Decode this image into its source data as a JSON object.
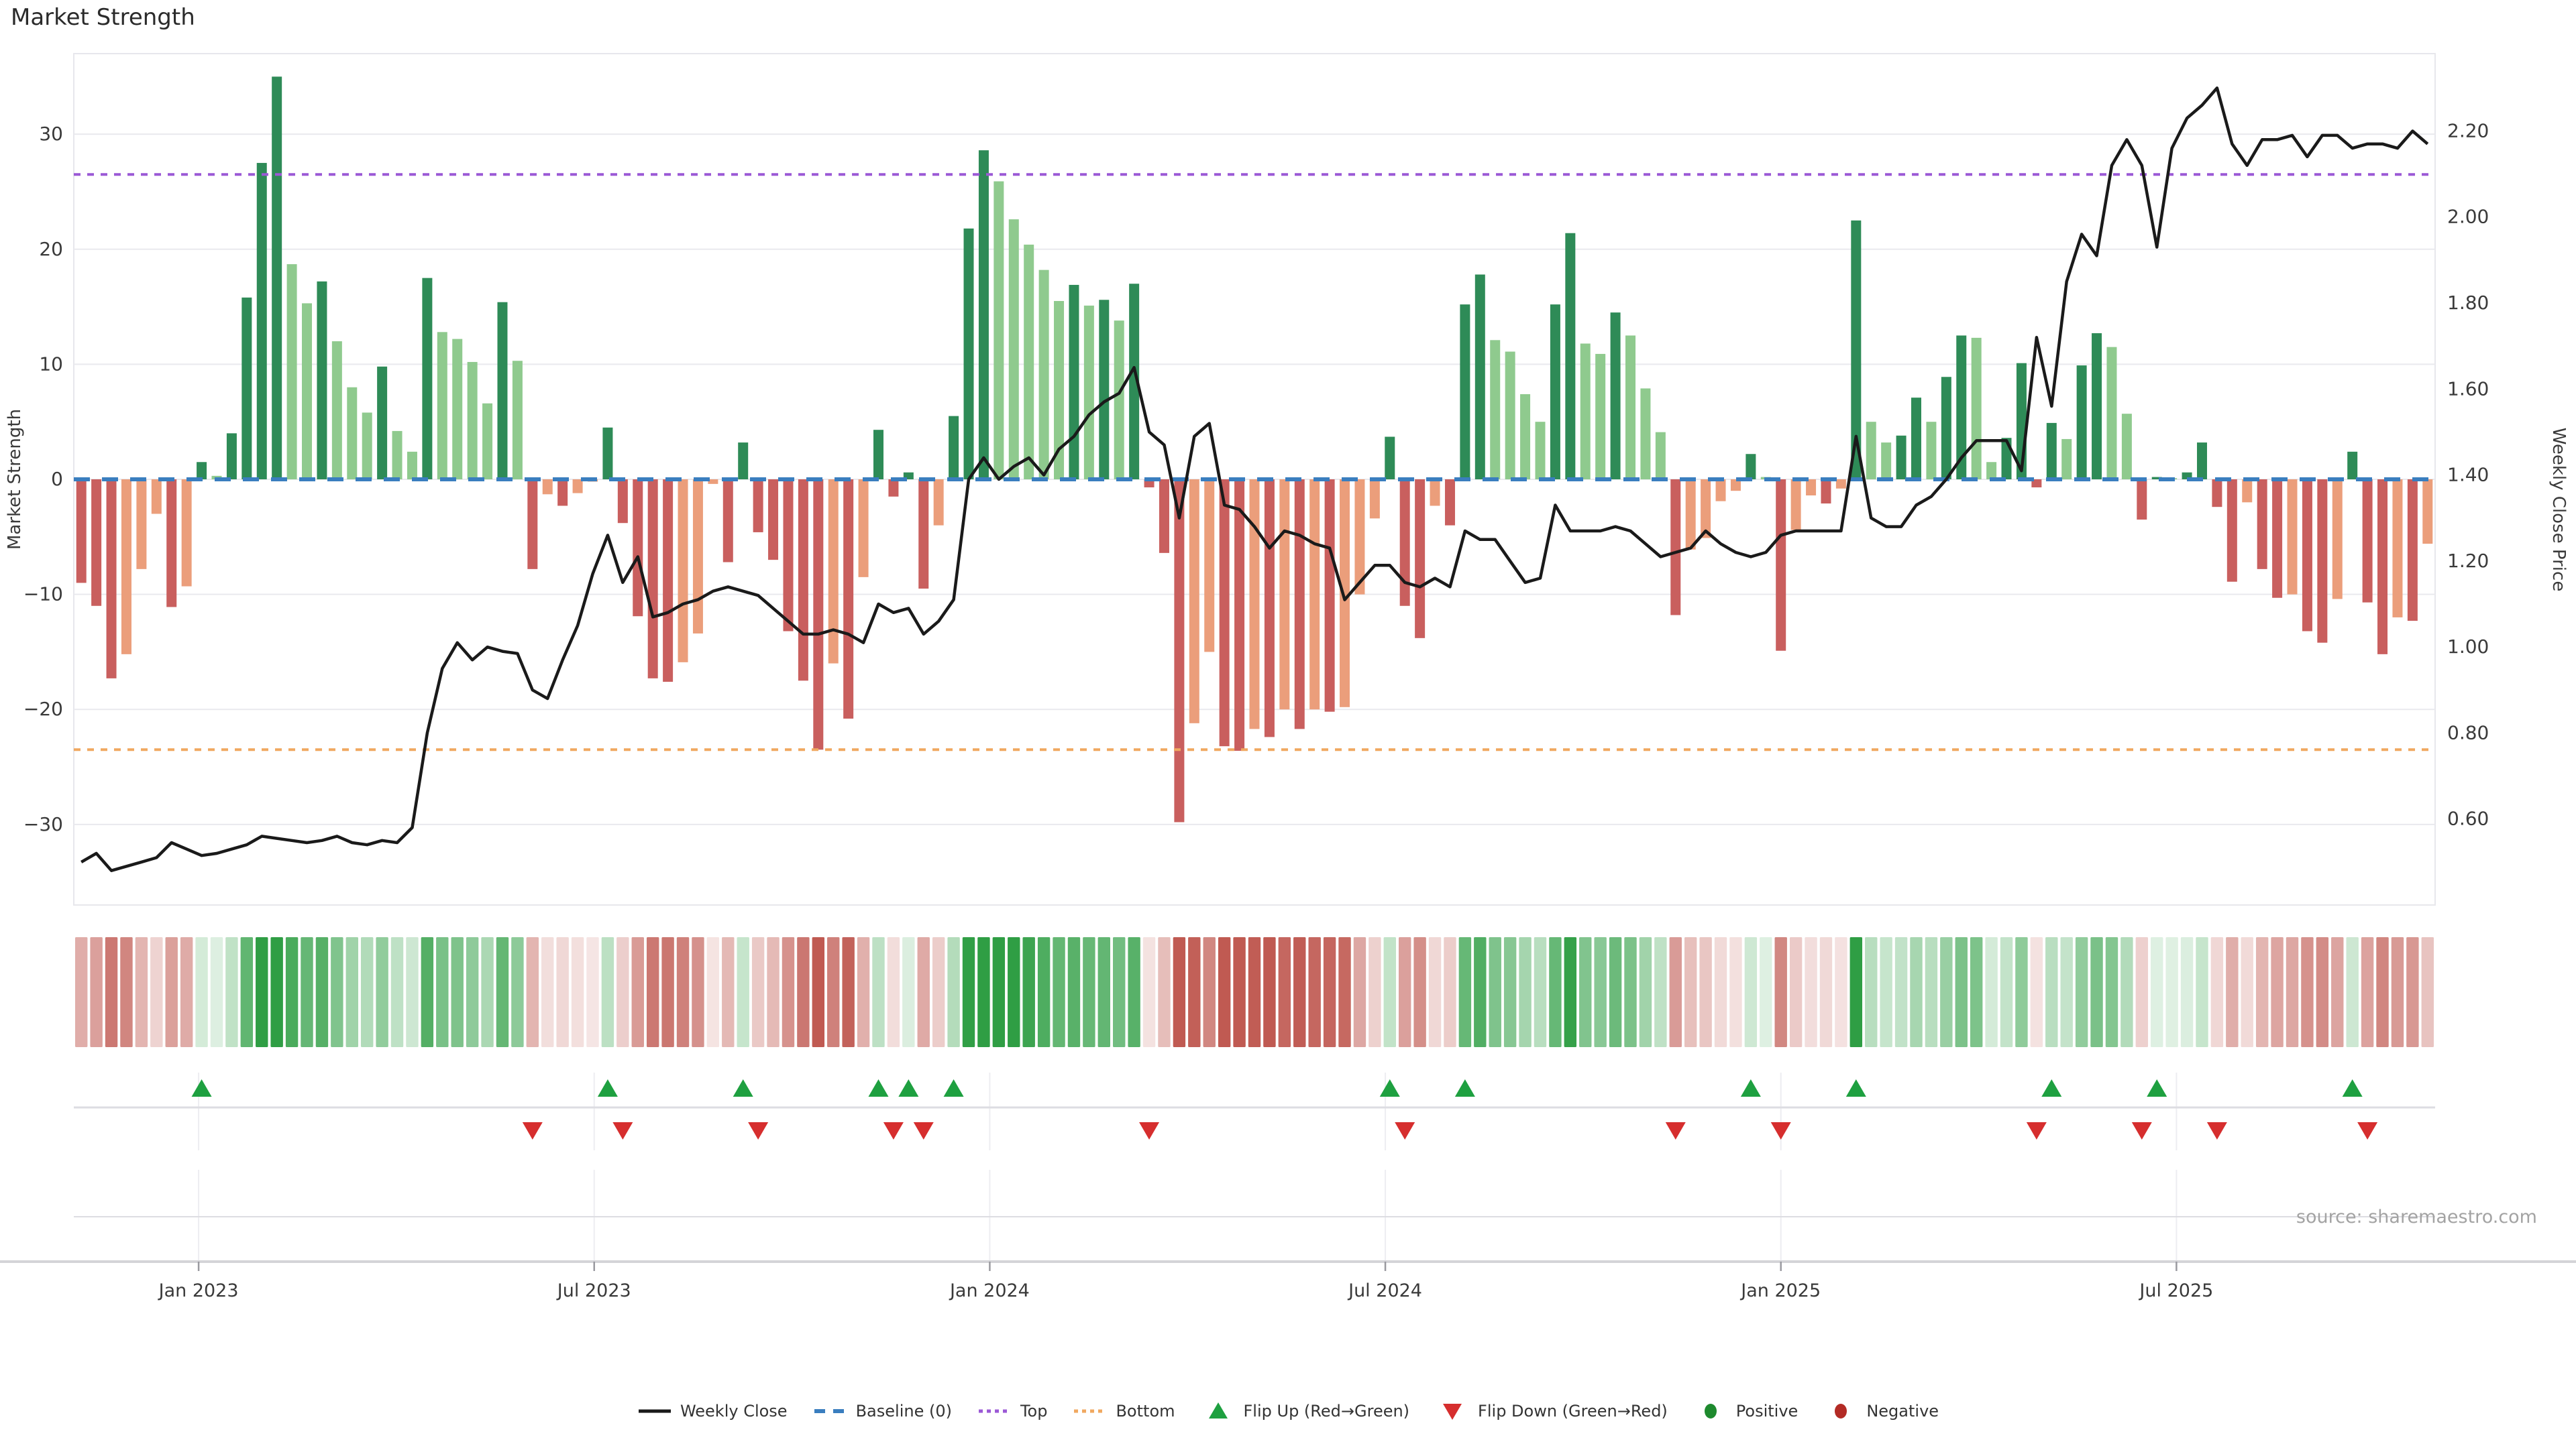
{
  "title": "Market Strength",
  "source": "source: sharemaestro.com",
  "legend": {
    "items": [
      {
        "type": "weekly-close",
        "label": "Weekly Close"
      },
      {
        "type": "baseline",
        "label": "Baseline (0)"
      },
      {
        "type": "top",
        "label": "Top"
      },
      {
        "type": "bottom",
        "label": "Bottom"
      },
      {
        "type": "flip-up",
        "label": "Flip Up (Red→Green)"
      },
      {
        "type": "flip-down",
        "label": "Flip Down (Green→Red)"
      },
      {
        "type": "positive",
        "label": "Positive"
      },
      {
        "type": "negative",
        "label": "Negative"
      }
    ]
  },
  "chart_data": {
    "type": "combo-bar-line-heatmap",
    "title": "Market Strength",
    "weeks": 157,
    "left_axis": {
      "label": "Market Strength",
      "tick_labels": [
        "30",
        "20",
        "10",
        "0",
        "−10",
        "−20",
        "−30"
      ],
      "tick_values": [
        30,
        20,
        10,
        0,
        -10,
        -20,
        -30
      ],
      "range": [
        -37,
        37
      ]
    },
    "right_axis": {
      "label": "Weekly Close Price",
      "tick_labels": [
        "2.20",
        "2.00",
        "1.80",
        "1.60",
        "1.40",
        "1.20",
        "1.00",
        "0.80",
        "0.60"
      ],
      "tick_values": [
        2.2,
        2.0,
        1.8,
        1.6,
        1.4,
        1.2,
        1.0,
        0.8,
        0.6
      ],
      "range": [
        0.4,
        2.38
      ]
    },
    "x_axis": {
      "tick_labels": [
        "Jan 2023",
        "Jul 2023",
        "Jan 2024",
        "Jul 2024",
        "Jan 2025",
        "Jul 2025"
      ],
      "tick_weeks": [
        7.8,
        34.1,
        60.4,
        86.7,
        113.0,
        139.3
      ]
    },
    "baseline_value": 0,
    "top_value": 26.5,
    "bottom_value": -23.5,
    "series": [
      {
        "name": "Market Strength",
        "type": "bar",
        "values": [
          -9,
          -11,
          -17.3,
          -15.2,
          -7.8,
          -3,
          -11.1,
          -9.3,
          1.5,
          0.3,
          4,
          15.8,
          27.5,
          35,
          18.7,
          15.3,
          17.2,
          12,
          8,
          5.8,
          9.8,
          4.2,
          2.4,
          17.5,
          12.8,
          12.2,
          10.2,
          6.6,
          15.4,
          10.3,
          -7.8,
          -1.3,
          -2.3,
          -1.2,
          -0.2,
          4.5,
          -3.8,
          -11.9,
          -17.3,
          -17.6,
          -15.9,
          -13.4,
          -0.4,
          -7.2,
          3.2,
          -4.6,
          -7,
          -13.2,
          -17.5,
          -23.5,
          -16,
          -20.8,
          -8.5,
          4.3,
          -1.5,
          0.6,
          -9.5,
          -4,
          5.5,
          21.8,
          28.6,
          25.9,
          22.6,
          20.4,
          18.2,
          15.5,
          16.9,
          15.1,
          15.6,
          13.8,
          17,
          -0.7,
          -6.4,
          -29.8,
          -21.2,
          -15,
          -23.2,
          -23.6,
          -21.7,
          -22.4,
          -20,
          -21.7,
          -20,
          -20.2,
          -19.8,
          -10,
          -3.4,
          3.7,
          -11,
          -13.8,
          -2.3,
          -4,
          15.2,
          17.8,
          12.1,
          11.1,
          7.4,
          5,
          15.2,
          21.4,
          11.8,
          10.9,
          14.5,
          12.5,
          7.9,
          4.1,
          -11.8,
          -6.1,
          -5.1,
          -1.9,
          -1,
          2.2,
          0.2,
          -14.9,
          -4.4,
          -1.4,
          -2.1,
          -0.8,
          22.5,
          5,
          3.2,
          3.8,
          7.1,
          5,
          8.9,
          12.5,
          12.3,
          1.5,
          3.6,
          10.1,
          -0.7,
          4.9,
          3.5,
          9.9,
          12.7,
          11.5,
          5.7,
          -3.5,
          0.2,
          0.1,
          0.6,
          3.2,
          -2.4,
          -8.9,
          -2,
          -7.8,
          -10.3,
          -10,
          -13.2,
          -14.2,
          -10.4,
          2.4,
          -10.7,
          -15.2,
          -12,
          -12.3,
          -5.6
        ]
      },
      {
        "name": "Weekly Close",
        "type": "line",
        "values": [
          0.5,
          0.52,
          0.48,
          0.49,
          0.5,
          0.51,
          0.545,
          0.53,
          0.515,
          0.52,
          0.53,
          0.54,
          0.56,
          0.555,
          0.55,
          0.545,
          0.55,
          0.56,
          0.545,
          0.54,
          0.55,
          0.545,
          0.58,
          0.8,
          0.95,
          1.01,
          0.97,
          1.0,
          0.99,
          0.985,
          0.9,
          0.88,
          0.97,
          1.05,
          1.17,
          1.26,
          1.15,
          1.21,
          1.07,
          1.08,
          1.1,
          1.11,
          1.13,
          1.14,
          1.13,
          1.12,
          1.09,
          1.06,
          1.03,
          1.03,
          1.04,
          1.03,
          1.01,
          1.1,
          1.08,
          1.09,
          1.03,
          1.06,
          1.11,
          1.39,
          1.44,
          1.39,
          1.42,
          1.44,
          1.4,
          1.46,
          1.49,
          1.54,
          1.57,
          1.59,
          1.65,
          1.5,
          1.47,
          1.3,
          1.49,
          1.52,
          1.33,
          1.32,
          1.28,
          1.23,
          1.27,
          1.26,
          1.24,
          1.23,
          1.11,
          1.15,
          1.19,
          1.19,
          1.15,
          1.14,
          1.16,
          1.14,
          1.27,
          1.25,
          1.25,
          1.2,
          1.15,
          1.16,
          1.33,
          1.27,
          1.27,
          1.27,
          1.28,
          1.27,
          1.24,
          1.21,
          1.22,
          1.23,
          1.27,
          1.24,
          1.22,
          1.21,
          1.22,
          1.26,
          1.27,
          1.27,
          1.27,
          1.27,
          1.49,
          1.3,
          1.28,
          1.28,
          1.33,
          1.35,
          1.39,
          1.44,
          1.48,
          1.48,
          1.48,
          1.41,
          1.72,
          1.56,
          1.85,
          1.96,
          1.91,
          2.12,
          2.18,
          2.12,
          1.93,
          2.16,
          2.23,
          2.26,
          2.3,
          2.17,
          2.12,
          2.18,
          2.18,
          2.19,
          2.14,
          2.19,
          2.19,
          2.16,
          2.17,
          2.17,
          2.16,
          2.2,
          2.17
        ]
      }
    ],
    "flip_up_weeks": [
      8,
      35,
      44,
      53,
      55,
      58,
      87,
      92,
      111,
      118,
      131,
      138,
      151
    ],
    "flip_down_weeks": [
      30,
      36,
      45,
      54,
      56,
      71,
      88,
      106,
      113,
      130,
      137,
      142,
      152
    ],
    "colors": {
      "bar_positive_strong": "#2e8b57",
      "bar_positive_weak": "#8fca8e",
      "bar_negative_strong": "#c95f5e",
      "bar_negative_weak": "#eb9e7b",
      "line": "#1a1a1a",
      "baseline": "#3a7ebf",
      "top": "#9b59d6",
      "bottom": "#f0a860",
      "heat_positive": "#2f9e44",
      "heat_negative": "#c05a52",
      "flip_up": "#1ea040",
      "flip_down": "#d62e2e",
      "positive_dot": "#1e8a2e",
      "negative_dot": "#b32b25",
      "grid": "#e9e9ee",
      "axis_line": "#d4d4d8",
      "tick_text": "#3a3a3a"
    }
  }
}
